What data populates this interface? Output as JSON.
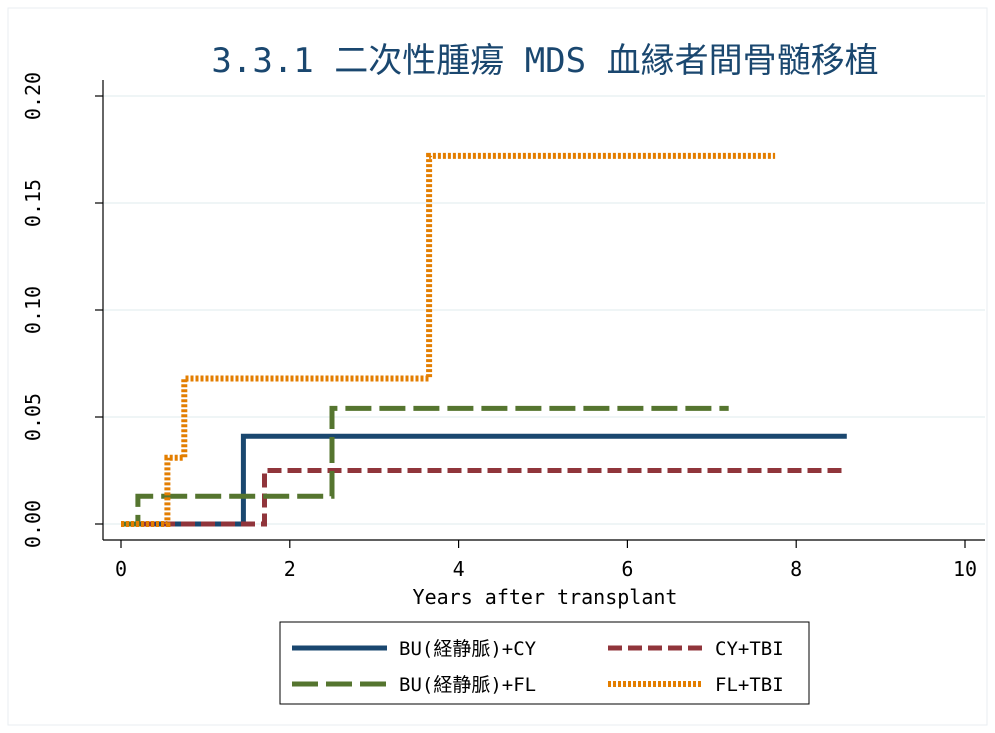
{
  "chart_data": {
    "type": "line",
    "subtype": "step",
    "title": "3.3.1 二次性腫瘍 MDS 血縁者間骨髄移植",
    "xlabel": "Years after transplant",
    "ylabel": "",
    "xlim": [
      0,
      10
    ],
    "ylim": [
      0,
      0.2
    ],
    "xticks": [
      "0",
      "2",
      "4",
      "6",
      "8",
      "10"
    ],
    "yticks": [
      "0.00",
      "0.05",
      "0.10",
      "0.15",
      "0.20"
    ],
    "grid": true,
    "legend_position": "bottom",
    "series": [
      {
        "name": "BU(経静脈)+CY",
        "color": "#1a476f",
        "style": "solid",
        "points": [
          [
            0,
            0
          ],
          [
            1.45,
            0
          ],
          [
            1.45,
            0.041
          ],
          [
            8.6,
            0.041
          ]
        ]
      },
      {
        "name": "CY+TBI",
        "color": "#90353b",
        "style": "dashed",
        "points": [
          [
            0,
            0
          ],
          [
            1.7,
            0
          ],
          [
            1.7,
            0.025
          ],
          [
            8.6,
            0.025
          ]
        ]
      },
      {
        "name": "BU(経静脈)+FL",
        "color": "#55752f",
        "style": "longdash",
        "points": [
          [
            0,
            0
          ],
          [
            0.2,
            0
          ],
          [
            0.2,
            0.013
          ],
          [
            2.5,
            0.013
          ],
          [
            2.5,
            0.054
          ],
          [
            7.2,
            0.054
          ]
        ]
      },
      {
        "name": "FL+TBI",
        "color": "#e37e00",
        "style": "dotted",
        "points": [
          [
            0,
            0
          ],
          [
            0.55,
            0
          ],
          [
            0.55,
            0.031
          ],
          [
            0.75,
            0.031
          ],
          [
            0.75,
            0.068
          ],
          [
            3.65,
            0.068
          ],
          [
            3.65,
            0.172
          ],
          [
            7.75,
            0.172
          ]
        ]
      }
    ]
  }
}
